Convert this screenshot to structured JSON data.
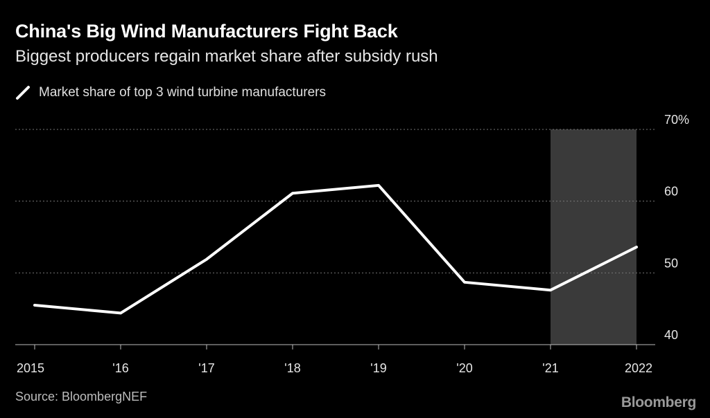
{
  "title": "China's Big Wind Manufacturers Fight Back",
  "subtitle": "Biggest producers regain market share after subsidy rush",
  "legend": {
    "label": "Market share of top 3 wind turbine manufacturers"
  },
  "source": "Source: BloombergNEF",
  "logo": "Bloomberg",
  "colors": {
    "background": "#000000",
    "line": "#ffffff",
    "grid": "#777777",
    "highlight": "#3a3a3a",
    "tick_text": "#e6e6e6"
  },
  "chart_data": {
    "type": "line",
    "title": "China's Big Wind Manufacturers Fight Back",
    "subtitle": "Biggest producers regain market share after subsidy rush",
    "x": [
      "2015",
      "'16",
      "'17",
      "'18",
      "'19",
      "'20",
      "'21",
      "2022"
    ],
    "series": [
      {
        "name": "Market share of top 3 wind turbine manufacturers",
        "values": [
          45.5,
          44.4,
          51.9,
          61.1,
          62.2,
          48.7,
          47.6,
          53.6
        ]
      }
    ],
    "ylim": [
      40,
      70
    ],
    "yticks": [
      {
        "value": 70,
        "label": "70%"
      },
      {
        "value": 60,
        "label": "60"
      },
      {
        "value": 50,
        "label": "50"
      },
      {
        "value": 40,
        "label": "40"
      }
    ],
    "y_axis_side": "right",
    "grid": true,
    "highlight_range": [
      "'21",
      "2022"
    ],
    "xlabel": "",
    "ylabel": ""
  }
}
